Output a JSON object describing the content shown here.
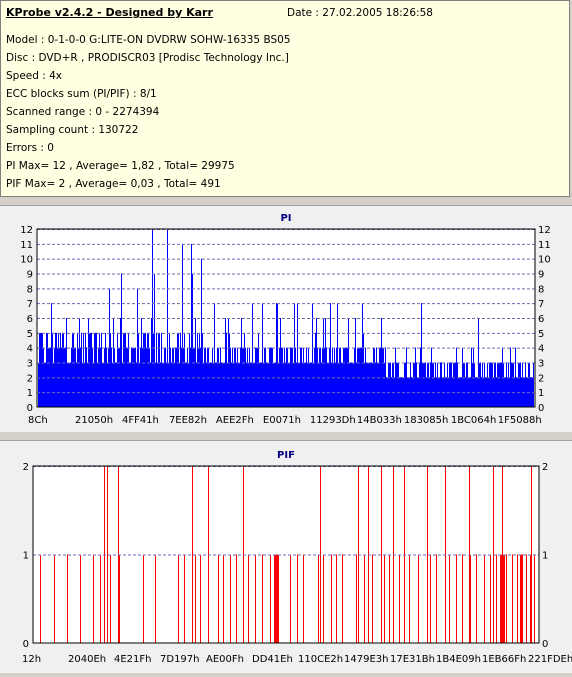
{
  "info": {
    "title": "KProbe v2.4.2 - Designed by Karr",
    "date": "Date : 27.02.2005 18:26:58",
    "lines": [
      "Model : 0-1-0-0 G:LITE-ON DVDRW SOHW-16335 BS05",
      "Disc : DVD+R , PRODISCR03 [Prodisc Technology Inc.]",
      "Speed : 4x",
      "ECC blocks sum (PI/PIF) : 8/1",
      "Scanned range : 0 - 2274394",
      "Sampling count : 130722",
      "Errors : 0",
      "PI Max= 12 , Average= 1,82 , Total= 29975",
      "PIF Max= 2 , Average= 0,03 , Total= 491"
    ]
  },
  "chart_data": [
    {
      "type": "bar",
      "title": "PI",
      "series_color": "#0000ff",
      "ylim": [
        0,
        12
      ],
      "yticks": [
        0,
        1,
        2,
        3,
        4,
        5,
        6,
        7,
        8,
        9,
        10,
        11,
        12
      ],
      "xtick_labels": [
        "8Ch",
        "21050h",
        "4FF41h",
        "7EE82h",
        "AEE2Fh",
        "E0071h",
        "11293Dh",
        "14B033h",
        "183085h",
        "1BC064h",
        "1F5088h"
      ],
      "grid": true,
      "max": 12,
      "average": 1.82
    },
    {
      "type": "bar",
      "title": "PIF",
      "series_color": "#ff0000",
      "ylim": [
        0,
        2
      ],
      "yticks": [
        0,
        1,
        2
      ],
      "xtick_labels": [
        "12h",
        "2040Eh",
        "4E21Fh",
        "7D197h",
        "AE00Fh",
        "DD41Eh",
        "110CE2h",
        "1479E3h",
        "17E31Bh",
        "1B4E09h",
        "1EB66Fh",
        "221FDEh"
      ],
      "grid": true,
      "max": 2,
      "average": 0.03
    }
  ]
}
